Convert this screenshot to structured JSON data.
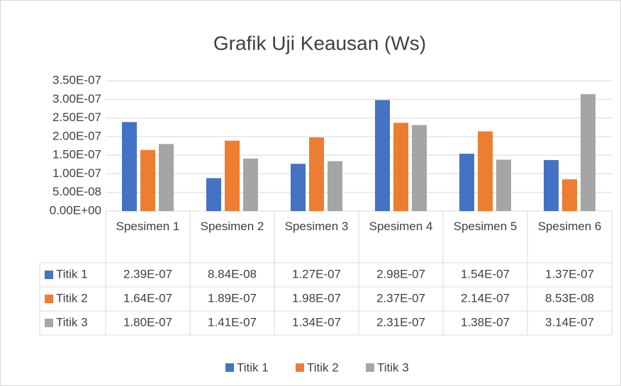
{
  "chart_data": {
    "type": "bar",
    "title": "Grafik Uji Keausan (Ws)",
    "categories": [
      "Spesimen 1",
      "Spesimen 2",
      "Spesimen 3",
      "Spesimen 4",
      "Spesimen 5",
      "Spesimen 6"
    ],
    "series": [
      {
        "name": "Titik 1",
        "color": "#4472c4",
        "values": [
          2.39e-07,
          8.84e-08,
          1.27e-07,
          2.98e-07,
          1.54e-07,
          1.37e-07
        ],
        "value_labels": [
          "2.39E-07",
          "8.84E-08",
          "1.27E-07",
          "2.98E-07",
          "1.54E-07",
          "1.37E-07"
        ]
      },
      {
        "name": "Titik 2",
        "color": "#ed7d31",
        "values": [
          1.64e-07,
          1.89e-07,
          1.98e-07,
          2.37e-07,
          2.14e-07,
          8.53e-08
        ],
        "value_labels": [
          "1.64E-07",
          "1.89E-07",
          "1.98E-07",
          "2.37E-07",
          "2.14E-07",
          "8.53E-08"
        ]
      },
      {
        "name": "Titik 3",
        "color": "#a5a5a5",
        "values": [
          1.8e-07,
          1.41e-07,
          1.34e-07,
          2.31e-07,
          1.38e-07,
          3.14e-07
        ],
        "value_labels": [
          "1.80E-07",
          "1.41E-07",
          "1.34E-07",
          "2.31E-07",
          "1.38E-07",
          "3.14E-07"
        ]
      }
    ],
    "ylim": [
      0,
      3.5e-07
    ],
    "yticks": [
      {
        "value": 0,
        "label": "0.00E+00"
      },
      {
        "value": 5e-08,
        "label": "5.00E-08"
      },
      {
        "value": 1e-07,
        "label": "1.00E-07"
      },
      {
        "value": 1.5e-07,
        "label": "1.50E-07"
      },
      {
        "value": 2e-07,
        "label": "2.00E-07"
      },
      {
        "value": 2.5e-07,
        "label": "2.50E-07"
      },
      {
        "value": 3e-07,
        "label": "3.00E-07"
      },
      {
        "value": 3.5e-07,
        "label": "3.50E-07"
      }
    ],
    "grid": true,
    "legend": "bottom"
  }
}
